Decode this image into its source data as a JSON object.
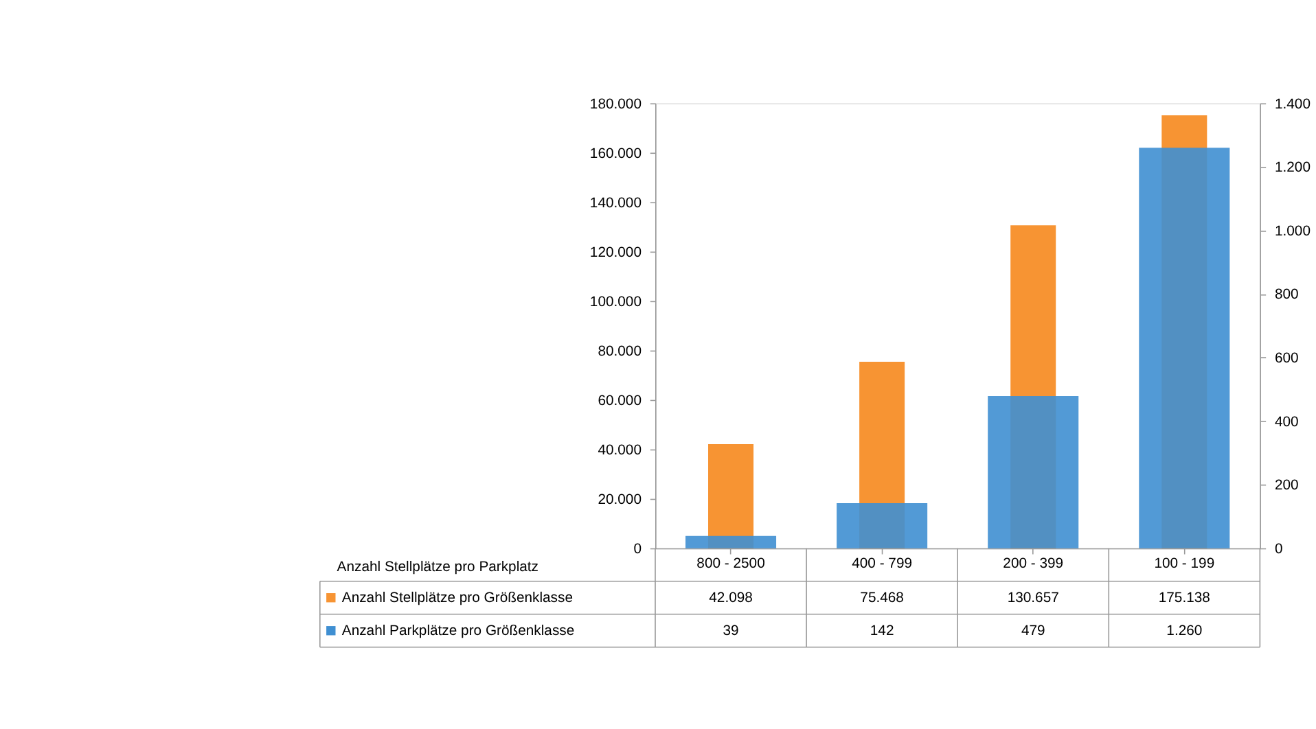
{
  "chart_data": {
    "type": "bar",
    "categories": [
      "800 - 2500",
      "400 - 799",
      "200 - 399",
      "100 - 199"
    ],
    "xlabel": "Anzahl Stellplätze pro Parkplatz",
    "series": [
      {
        "name": "Anzahl Stellplätze pro Größenklasse",
        "color": "#f79433",
        "values": [
          42098,
          75468,
          130657,
          175138
        ],
        "value_labels": [
          "42.098",
          "75.468",
          "130.657",
          "175.138"
        ]
      },
      {
        "name": "Anzahl Parkplätze pro Größenklasse",
        "color": "#3f8fd2",
        "values": [
          39,
          142,
          479,
          1260
        ],
        "value_labels": [
          "39",
          "142",
          "479",
          "1.260"
        ],
        "axis": "y2"
      }
    ],
    "ylim": [
      0,
      180000
    ],
    "yticks": [
      0,
      {
        "value": 20000,
        "label": "20.000"
      },
      {
        "value": 40000,
        "label": "40.000"
      },
      {
        "value": 60000,
        "label": "60.000"
      },
      {
        "value": 80000,
        "label": "80.000"
      },
      {
        "value": 100000,
        "label": "100.000"
      },
      {
        "value": 120000,
        "label": "120.000"
      },
      {
        "value": 140000,
        "label": "140.000"
      },
      {
        "value": 160000,
        "label": "160.000"
      },
      {
        "value": 180000,
        "label": "180.000"
      }
    ],
    "y2lim": [
      0,
      1400
    ],
    "y2ticks": [
      0,
      200,
      400,
      600,
      800,
      {
        "value": 1000,
        "label": "1.000"
      },
      {
        "value": 1200,
        "label": "1.200"
      },
      {
        "value": 1400,
        "label": "1.400"
      }
    ],
    "legend": "bottom",
    "grid": false
  }
}
